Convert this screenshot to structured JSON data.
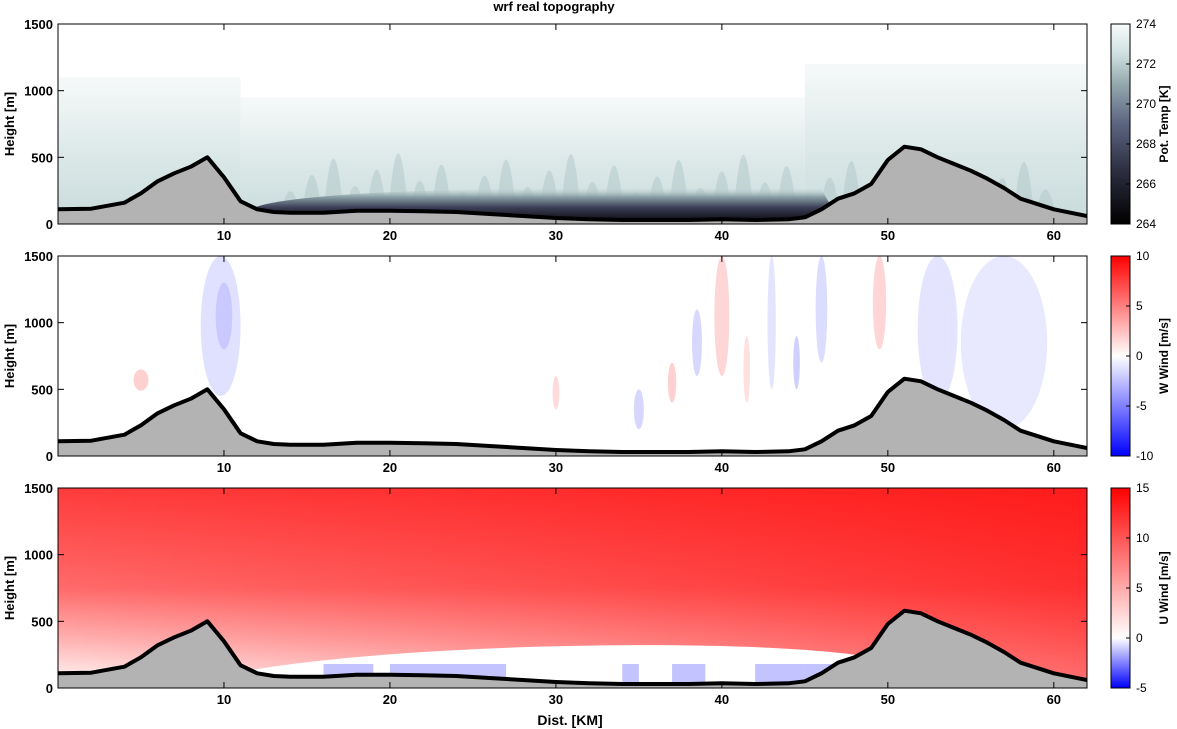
{
  "title": "wrf real topography",
  "xlabel": "Dist. [KM]",
  "colors": {
    "terrain_fill": "#b3b3b3",
    "terrain_line": "#000000",
    "temp_low": "#111118",
    "temp_mid": "#595e78",
    "temp_high": "#f3f8f8",
    "wind_pos": "#ff0000",
    "wind_neg": "#0000ff",
    "wind_zero": "#ffffff"
  },
  "chart_data": [
    {
      "type": "heatmap",
      "name": "pot_temp",
      "ylabel": "Height [m]",
      "colorbar_label": "Pot. Temp [K]",
      "colorbar_ticks": [
        264,
        266,
        268,
        270,
        272,
        274
      ],
      "clim": [
        264,
        274
      ],
      "colormap": "bone",
      "xlim": [
        0,
        62
      ],
      "ylim": [
        0,
        1500
      ],
      "xticks": [
        10,
        20,
        30,
        40,
        50,
        60
      ],
      "yticks": [
        0,
        500,
        1000,
        1500
      ],
      "terrain": {
        "x": [
          0,
          2,
          4,
          5,
          6,
          7,
          8,
          9,
          10,
          11,
          12,
          13,
          14,
          16,
          18,
          20,
          22,
          24,
          26,
          28,
          30,
          32,
          34,
          36,
          38,
          40,
          42,
          44,
          45,
          46,
          47,
          48,
          49,
          50,
          51,
          52,
          53,
          54,
          55,
          56,
          57,
          58,
          60,
          62
        ],
        "y": [
          110,
          115,
          160,
          230,
          320,
          380,
          430,
          500,
          350,
          170,
          110,
          90,
          85,
          85,
          100,
          100,
          95,
          90,
          75,
          60,
          45,
          35,
          30,
          30,
          30,
          35,
          30,
          35,
          50,
          110,
          190,
          230,
          300,
          480,
          580,
          560,
          500,
          450,
          400,
          340,
          270,
          190,
          110,
          60
        ]
      }
    },
    {
      "type": "heatmap",
      "name": "w_wind",
      "ylabel": "Height [m]",
      "colorbar_label": "W Wind [m/s]",
      "colorbar_ticks": [
        -10,
        -5,
        0,
        5,
        10
      ],
      "clim": [
        -10,
        10
      ],
      "colormap": "blue-white-red",
      "xlim": [
        0,
        62
      ],
      "ylim": [
        0,
        1500
      ],
      "xticks": [
        10,
        20,
        30,
        40,
        50,
        60
      ],
      "yticks": [
        0,
        500,
        1000,
        1500
      ]
    },
    {
      "type": "heatmap",
      "name": "u_wind",
      "ylabel": "Height [m]",
      "colorbar_label": "U Wind [m/s]",
      "colorbar_ticks": [
        -5,
        0,
        5,
        10,
        15
      ],
      "clim": [
        -5,
        15
      ],
      "colormap": "blue-white-red",
      "xlim": [
        0,
        62
      ],
      "ylim": [
        0,
        1500
      ],
      "xticks": [
        10,
        20,
        30,
        40,
        50,
        60
      ],
      "yticks": [
        0,
        500,
        1000,
        1500
      ]
    }
  ]
}
